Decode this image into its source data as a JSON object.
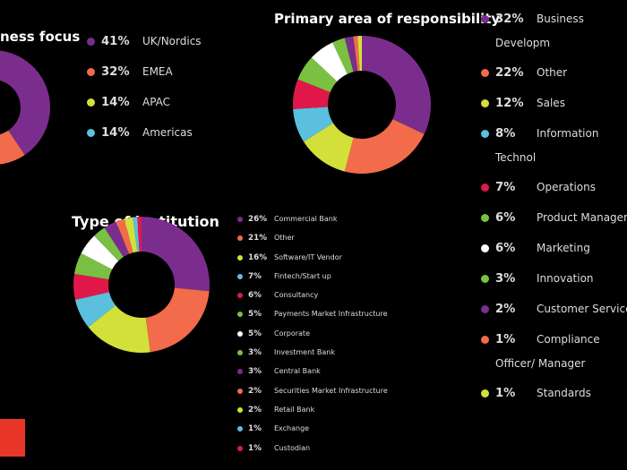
{
  "chart_data": [
    {
      "type": "donut",
      "title": "ness focus",
      "categories": [
        "UK/Nordics",
        "EMEA",
        "APAC",
        "Americas"
      ],
      "values": [
        41,
        32,
        14,
        14
      ],
      "value_labels": [
        "41%",
        "32%",
        "14%",
        "14%"
      ],
      "colors": [
        "#7b2d8e",
        "#f26b4a",
        "#d4e03a",
        "#5bc0de"
      ]
    },
    {
      "type": "donut",
      "title": "Primary area of responsibility",
      "categories": [
        "Business Developm",
        "Other",
        "Sales",
        "Information Technol",
        "Operations",
        "Product Managem",
        "Marketing",
        "Innovation",
        "Customer Services",
        "Compliance Officer/ Manager",
        "Standards"
      ],
      "values": [
        32,
        22,
        12,
        8,
        7,
        6,
        6,
        3,
        2,
        1,
        1
      ],
      "value_labels": [
        "32%",
        "22%",
        "12%",
        "8%",
        "7%",
        "6%",
        "6%",
        "3%",
        "2%",
        "1%",
        "1%"
      ],
      "colors": [
        "#7b2d8e",
        "#f26b4a",
        "#d4e03a",
        "#5bc0de",
        "#e0184a",
        "#7ac143",
        "#ffffff",
        "#7ac143",
        "#7b2d8e",
        "#f26b4a",
        "#d4e03a"
      ]
    },
    {
      "type": "donut",
      "title": "Type of institution",
      "categories": [
        "Commercial Bank",
        "Other",
        "Software/IT Vendor",
        "Fintech/Start up",
        "Consultancy",
        "Payments Market Infrastructure",
        "Corporate",
        "Investment Bank",
        "Central Bank",
        "Securities Market Infrastructure",
        "Retail Bank",
        "Exchange",
        "Custodian"
      ],
      "values": [
        26,
        21,
        16,
        7,
        6,
        5,
        5,
        3,
        3,
        2,
        2,
        1,
        1
      ],
      "value_labels": [
        "26%",
        "21%",
        "16%",
        "7%",
        "6%",
        "5%",
        "5%",
        "3%",
        "3%",
        "2%",
        "2%",
        "1%",
        "1%"
      ],
      "colors": [
        "#7b2d8e",
        "#f26b4a",
        "#d4e03a",
        "#5bc0de",
        "#e0184a",
        "#7ac143",
        "#ffffff",
        "#7ac143",
        "#7b2d8e",
        "#f26b4a",
        "#d4e03a",
        "#5bc0de",
        "#e0184a"
      ]
    }
  ]
}
